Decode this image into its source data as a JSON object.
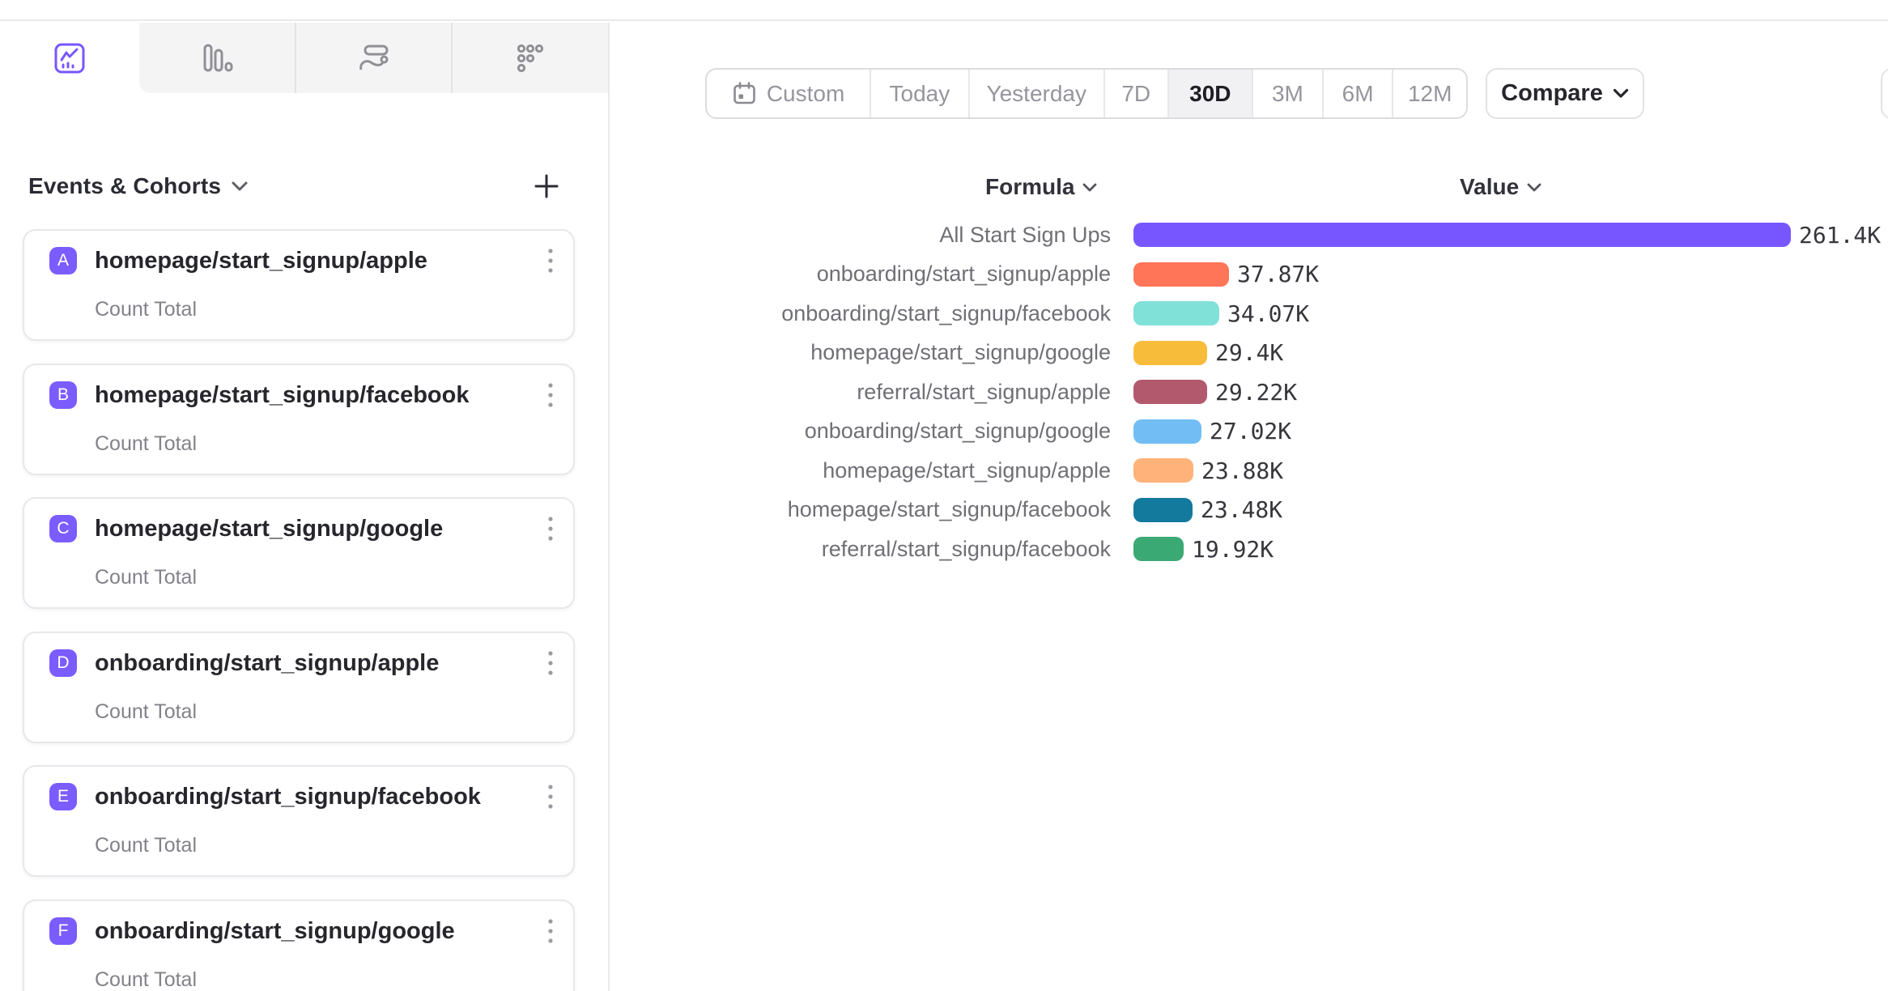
{
  "tabs": [
    {
      "icon": "insights-line-chart-icon",
      "active": true
    },
    {
      "icon": "bar-chart-icon",
      "active": false
    },
    {
      "icon": "flows-icon",
      "active": false
    },
    {
      "icon": "retention-dots-icon",
      "active": false
    }
  ],
  "sidebar": {
    "title": "Events & Cohorts",
    "badge_color": "#7B5CFF",
    "events": [
      {
        "badge": "A",
        "name": "homepage/start_signup/apple",
        "metric": "Count Total"
      },
      {
        "badge": "B",
        "name": "homepage/start_signup/facebook",
        "metric": "Count Total"
      },
      {
        "badge": "C",
        "name": "homepage/start_signup/google",
        "metric": "Count Total"
      },
      {
        "badge": "D",
        "name": "onboarding/start_signup/apple",
        "metric": "Count Total"
      },
      {
        "badge": "E",
        "name": "onboarding/start_signup/facebook",
        "metric": "Count Total"
      },
      {
        "badge": "F",
        "name": "onboarding/start_signup/google",
        "metric": "Count Total"
      }
    ]
  },
  "toolbar": {
    "date_ranges": [
      {
        "label": "Custom",
        "icon": "calendar-icon",
        "selected": false
      },
      {
        "label": "Today",
        "selected": false
      },
      {
        "label": "Yesterday",
        "selected": false
      },
      {
        "label": "7D",
        "selected": false
      },
      {
        "label": "30D",
        "selected": true
      },
      {
        "label": "3M",
        "selected": false
      },
      {
        "label": "6M",
        "selected": false
      },
      {
        "label": "12M",
        "selected": false
      }
    ],
    "compare_label": "Compare"
  },
  "chart_data": {
    "type": "bar",
    "orientation": "horizontal",
    "columns": {
      "formula": "Formula",
      "value": "Value"
    },
    "max_value": 261400,
    "rows": [
      {
        "label": "All Start Sign Ups",
        "value": 261400,
        "value_label": "261.4K",
        "color": "#7856FF"
      },
      {
        "label": "onboarding/start_signup/apple",
        "value": 37870,
        "value_label": "37.87K",
        "color": "#FF7557"
      },
      {
        "label": "onboarding/start_signup/facebook",
        "value": 34070,
        "value_label": "34.07K",
        "color": "#80E1D9"
      },
      {
        "label": "homepage/start_signup/google",
        "value": 29400,
        "value_label": "29.4K",
        "color": "#F8BC3B"
      },
      {
        "label": "referral/start_signup/apple",
        "value": 29220,
        "value_label": "29.22K",
        "color": "#B2596E"
      },
      {
        "label": "onboarding/start_signup/google",
        "value": 27020,
        "value_label": "27.02K",
        "color": "#72BEF4"
      },
      {
        "label": "homepage/start_signup/apple",
        "value": 23880,
        "value_label": "23.88K",
        "color": "#FFB27A"
      },
      {
        "label": "homepage/start_signup/facebook",
        "value": 23480,
        "value_label": "23.48K",
        "color": "#147A9D"
      },
      {
        "label": "referral/start_signup/facebook",
        "value": 19920,
        "value_label": "19.92K",
        "color": "#3BA974"
      }
    ]
  }
}
